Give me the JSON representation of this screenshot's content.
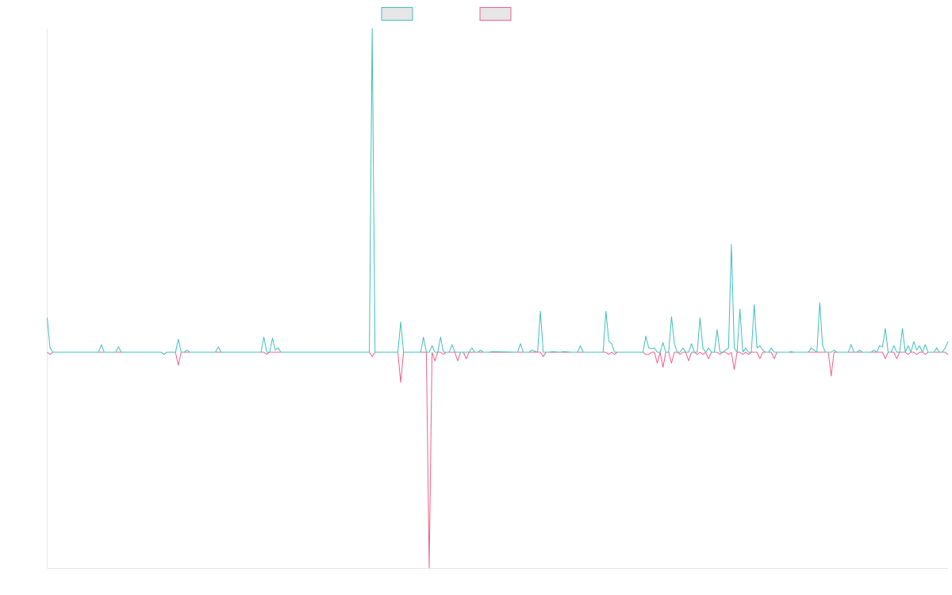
{
  "chart_data": {
    "type": "line",
    "title": "",
    "xlabel": "",
    "ylabel": "",
    "grid": false,
    "legend_position": "top-center",
    "x_range": [
      0,
      316
    ],
    "ylim": [
      -100,
      150
    ],
    "series": [
      {
        "color": "#3fbfbf",
        "fill": "#e6e6e6",
        "points": [
          [
            0,
            16
          ],
          [
            1,
            2
          ],
          [
            2,
            0
          ],
          [
            18,
            0
          ],
          [
            19,
            3.5
          ],
          [
            20,
            0
          ],
          [
            24,
            0
          ],
          [
            25,
            2.5
          ],
          [
            26,
            0
          ],
          [
            40,
            0
          ],
          [
            41,
            -1
          ],
          [
            42,
            0
          ],
          [
            45,
            0
          ],
          [
            46,
            6
          ],
          [
            47,
            0
          ],
          [
            48,
            0
          ],
          [
            49,
            1
          ],
          [
            50,
            0
          ],
          [
            59,
            0
          ],
          [
            60,
            2.5
          ],
          [
            61,
            0
          ],
          [
            75,
            0
          ],
          [
            76,
            7
          ],
          [
            77,
            0
          ],
          [
            78,
            0
          ],
          [
            79,
            6.5
          ],
          [
            80,
            1
          ],
          [
            81,
            2
          ],
          [
            82,
            0
          ],
          [
            113,
            0
          ],
          [
            114,
            150
          ],
          [
            115,
            0
          ],
          [
            116,
            0
          ],
          [
            123,
            0
          ],
          [
            124,
            14
          ],
          [
            125,
            0
          ],
          [
            131,
            0
          ],
          [
            132,
            7
          ],
          [
            133,
            0
          ],
          [
            134,
            0
          ],
          [
            135,
            3
          ],
          [
            136,
            0
          ],
          [
            137,
            0
          ],
          [
            138,
            7
          ],
          [
            139,
            0
          ],
          [
            141,
            0
          ],
          [
            142,
            3.5
          ],
          [
            143,
            0
          ],
          [
            148,
            0
          ],
          [
            149,
            2
          ],
          [
            150,
            0
          ],
          [
            151,
            0
          ],
          [
            152,
            1
          ],
          [
            153,
            0
          ],
          [
            155,
            0
          ],
          [
            156,
            0.3
          ],
          [
            165,
            0
          ],
          [
            166,
            4
          ],
          [
            167,
            0
          ],
          [
            169,
            0
          ],
          [
            170,
            1
          ],
          [
            172,
            0
          ],
          [
            173,
            19
          ],
          [
            174,
            0
          ],
          [
            176,
            0
          ],
          [
            177,
            0.3
          ],
          [
            180,
            0
          ],
          [
            181,
            0.3
          ],
          [
            184,
            0
          ],
          [
            186,
            0
          ],
          [
            187,
            3
          ],
          [
            188,
            0
          ],
          [
            195,
            0
          ],
          [
            196,
            19
          ],
          [
            197,
            5
          ],
          [
            198,
            4
          ],
          [
            199,
            0
          ],
          [
            209,
            0
          ],
          [
            210,
            7.5
          ],
          [
            211,
            2
          ],
          [
            212,
            1.5
          ],
          [
            213,
            2
          ],
          [
            214,
            0
          ],
          [
            215,
            0
          ],
          [
            216,
            4.5
          ],
          [
            217,
            0
          ],
          [
            218,
            0
          ],
          [
            219,
            16.5
          ],
          [
            220,
            4
          ],
          [
            221,
            0
          ],
          [
            222,
            0
          ],
          [
            223,
            2
          ],
          [
            224,
            0
          ],
          [
            225,
            0
          ],
          [
            226,
            4
          ],
          [
            227,
            0
          ],
          [
            228,
            0
          ],
          [
            229,
            16
          ],
          [
            230,
            2
          ],
          [
            231,
            0
          ],
          [
            232,
            2
          ],
          [
            233,
            0
          ],
          [
            234,
            0
          ],
          [
            235,
            10.5
          ],
          [
            236,
            0
          ],
          [
            237,
            0
          ],
          [
            238,
            1
          ],
          [
            239,
            2
          ],
          [
            240,
            50
          ],
          [
            241,
            2
          ],
          [
            242,
            0
          ],
          [
            243,
            20
          ],
          [
            244,
            0
          ],
          [
            245,
            2
          ],
          [
            246,
            0
          ],
          [
            247,
            0
          ],
          [
            248,
            22
          ],
          [
            249,
            2
          ],
          [
            250,
            3
          ],
          [
            251,
            1
          ],
          [
            252,
            0
          ],
          [
            253,
            0
          ],
          [
            254,
            2
          ],
          [
            255,
            0
          ],
          [
            260,
            0
          ],
          [
            261,
            0.3
          ],
          [
            262,
            0
          ],
          [
            267,
            0
          ],
          [
            268,
            2
          ],
          [
            269,
            1
          ],
          [
            270,
            0
          ],
          [
            271,
            23
          ],
          [
            272,
            3
          ],
          [
            273,
            0
          ],
          [
            275,
            0
          ],
          [
            276,
            1
          ],
          [
            277,
            0
          ],
          [
            281,
            0
          ],
          [
            282,
            3.5
          ],
          [
            283,
            0
          ],
          [
            284,
            0
          ],
          [
            285,
            1
          ],
          [
            286,
            0
          ],
          [
            289,
            0
          ],
          [
            290,
            1
          ],
          [
            291,
            0
          ],
          [
            292,
            3
          ],
          [
            293,
            2.5
          ],
          [
            294,
            11
          ],
          [
            295,
            0
          ],
          [
            296,
            0
          ],
          [
            297,
            3
          ],
          [
            298,
            0
          ],
          [
            299,
            0
          ],
          [
            300,
            11
          ],
          [
            301,
            0
          ],
          [
            302,
            3
          ],
          [
            303,
            0
          ],
          [
            304,
            5
          ],
          [
            305,
            1
          ],
          [
            306,
            3
          ],
          [
            307,
            0
          ],
          [
            308,
            3.5
          ],
          [
            309,
            0
          ],
          [
            311,
            0
          ],
          [
            312,
            2
          ],
          [
            313,
            0
          ],
          [
            314,
            0
          ],
          [
            315,
            2
          ],
          [
            316,
            5
          ]
        ]
      },
      {
        "color": "#f06088",
        "fill": "#e6e6e6",
        "points": [
          [
            0,
            0
          ],
          [
            1,
            -1
          ],
          [
            2,
            0
          ],
          [
            40,
            0
          ],
          [
            41,
            -1
          ],
          [
            42,
            0
          ],
          [
            45,
            0
          ],
          [
            46,
            -6
          ],
          [
            47,
            0
          ],
          [
            76,
            0
          ],
          [
            77,
            -1
          ],
          [
            78,
            0
          ],
          [
            113,
            0
          ],
          [
            114,
            -2
          ],
          [
            115,
            0
          ],
          [
            123,
            0
          ],
          [
            124,
            -14
          ],
          [
            125,
            0
          ],
          [
            133,
            0
          ],
          [
            134,
            -100
          ],
          [
            135,
            0
          ],
          [
            136,
            -4
          ],
          [
            137,
            0
          ],
          [
            138,
            0
          ],
          [
            139,
            -1
          ],
          [
            140,
            0
          ],
          [
            143,
            0
          ],
          [
            144,
            -4
          ],
          [
            145,
            0
          ],
          [
            146,
            0
          ],
          [
            147,
            -3
          ],
          [
            148,
            0
          ],
          [
            173,
            0
          ],
          [
            174,
            -2
          ],
          [
            175,
            0
          ],
          [
            196,
            0
          ],
          [
            197,
            -1
          ],
          [
            198,
            0
          ],
          [
            199,
            -1
          ],
          [
            200,
            0
          ],
          [
            209,
            0
          ],
          [
            210,
            -1
          ],
          [
            211,
            -1
          ],
          [
            212,
            0
          ],
          [
            213,
            0
          ],
          [
            214,
            -5
          ],
          [
            215,
            0
          ],
          [
            216,
            -7
          ],
          [
            217,
            0
          ],
          [
            218,
            0
          ],
          [
            219,
            -5
          ],
          [
            220,
            0
          ],
          [
            221,
            0
          ],
          [
            222,
            -1
          ],
          [
            223,
            0
          ],
          [
            224,
            0
          ],
          [
            225,
            -4
          ],
          [
            226,
            0
          ],
          [
            227,
            0
          ],
          [
            228,
            -1
          ],
          [
            229,
            0
          ],
          [
            230,
            -1
          ],
          [
            231,
            0
          ],
          [
            232,
            -3
          ],
          [
            233,
            0
          ],
          [
            235,
            0
          ],
          [
            236,
            -1
          ],
          [
            237,
            0
          ],
          [
            238,
            0
          ],
          [
            239,
            -1
          ],
          [
            240,
            0
          ],
          [
            241,
            -8
          ],
          [
            242,
            0
          ],
          [
            243,
            0
          ],
          [
            244,
            -1
          ],
          [
            245,
            0
          ],
          [
            246,
            -1
          ],
          [
            247,
            0
          ],
          [
            249,
            0
          ],
          [
            250,
            -3
          ],
          [
            251,
            0
          ],
          [
            254,
            0
          ],
          [
            255,
            -3
          ],
          [
            256,
            0
          ],
          [
            274,
            0
          ],
          [
            275,
            -11
          ],
          [
            276,
            0
          ],
          [
            293,
            0
          ],
          [
            294,
            -3
          ],
          [
            295,
            0
          ],
          [
            297,
            0
          ],
          [
            298,
            -3
          ],
          [
            299,
            0
          ],
          [
            301,
            0
          ],
          [
            302,
            -1
          ],
          [
            303,
            0
          ],
          [
            304,
            0
          ],
          [
            305,
            -1
          ],
          [
            306,
            0
          ],
          [
            307,
            0
          ],
          [
            308,
            -1
          ],
          [
            309,
            0
          ],
          [
            315,
            0
          ],
          [
            316,
            -1
          ]
        ]
      }
    ]
  }
}
